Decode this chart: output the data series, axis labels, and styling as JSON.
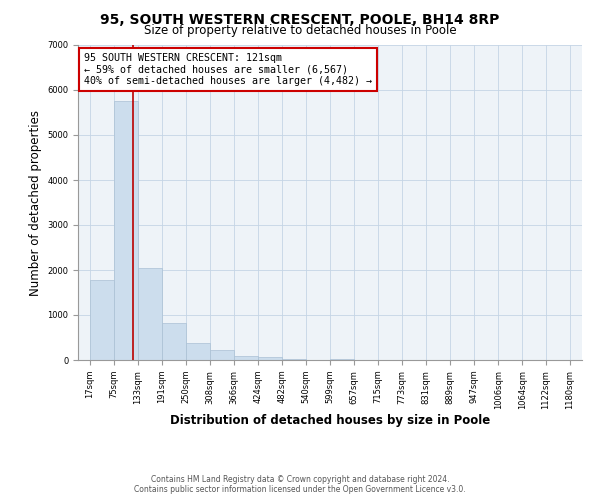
{
  "title": "95, SOUTH WESTERN CRESCENT, POOLE, BH14 8RP",
  "subtitle": "Size of property relative to detached houses in Poole",
  "xlabel": "Distribution of detached houses by size in Poole",
  "ylabel": "Number of detached properties",
  "bar_left_edges": [
    17,
    75,
    133,
    191,
    250,
    308,
    366,
    424,
    482,
    540,
    599,
    657,
    715,
    773,
    831,
    889,
    947,
    1006,
    1064,
    1122
  ],
  "bar_heights": [
    1780,
    5750,
    2050,
    830,
    370,
    220,
    100,
    60,
    30,
    10,
    30,
    0,
    0,
    0,
    0,
    0,
    0,
    0,
    0,
    0
  ],
  "bin_width": 58,
  "bar_color": "#ccdded",
  "bar_edge_color": "#aac0d4",
  "tick_labels": [
    "17sqm",
    "75sqm",
    "133sqm",
    "191sqm",
    "250sqm",
    "308sqm",
    "366sqm",
    "424sqm",
    "482sqm",
    "540sqm",
    "599sqm",
    "657sqm",
    "715sqm",
    "773sqm",
    "831sqm",
    "889sqm",
    "947sqm",
    "1006sqm",
    "1064sqm",
    "1122sqm",
    "1180sqm"
  ],
  "property_line_x": 121,
  "property_line_color": "#bb0000",
  "ylim": [
    0,
    7000
  ],
  "yticks": [
    0,
    1000,
    2000,
    3000,
    4000,
    5000,
    6000,
    7000
  ],
  "annotation_title": "95 SOUTH WESTERN CRESCENT: 121sqm",
  "annotation_line1": "← 59% of detached houses are smaller (6,567)",
  "annotation_line2": "40% of semi-detached houses are larger (4,482) →",
  "annotation_box_color": "#ffffff",
  "annotation_box_edge_color": "#cc0000",
  "footer1": "Contains HM Land Registry data © Crown copyright and database right 2024.",
  "footer2": "Contains public sector information licensed under the Open Government Licence v3.0.",
  "background_color": "#ffffff",
  "plot_bg_color": "#eef3f8",
  "grid_color": "#c5d5e5",
  "title_fontsize": 10,
  "subtitle_fontsize": 8.5,
  "axis_label_fontsize": 8.5,
  "tick_fontsize": 6,
  "footer_fontsize": 5.5
}
